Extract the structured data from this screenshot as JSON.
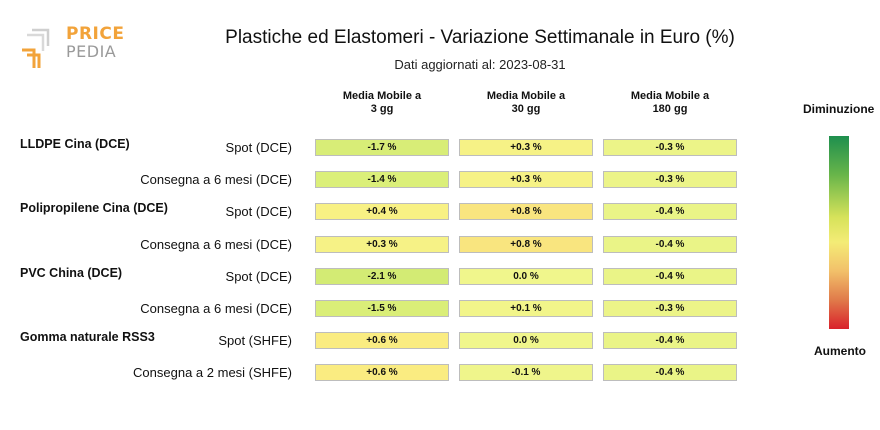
{
  "logo": {
    "line1": "PRICE",
    "line2": "PEDIA"
  },
  "title": "Plastiche ed Elastomeri - Variazione Settimanale in Euro (%)",
  "subtitle": "Dati aggiornati al: 2023-08-31",
  "legend": {
    "top": "Diminuzione",
    "bottom": "Aumento",
    "colors": [
      "#1e8f4e",
      "#d6e25a",
      "#f4ec76",
      "#d9212b"
    ]
  },
  "chart_data": {
    "type": "table",
    "title": "Plastiche ed Elastomeri - Variazione Settimanale in Euro (%)",
    "columns": [
      {
        "line1": "Media Mobile a",
        "line2": "3 gg"
      },
      {
        "line1": "Media Mobile a",
        "line2": "30 gg"
      },
      {
        "line1": "Media Mobile a",
        "line2": "180 gg"
      }
    ],
    "groups": [
      "LLDPE Cina (DCE)",
      "Polipropilene Cina (DCE)",
      "PVC China (DCE)",
      "Gomma naturale RSS3"
    ],
    "rows": [
      {
        "group": "LLDPE Cina (DCE)",
        "label": "Spot (DCE)",
        "values": [
          -1.7,
          0.3,
          -0.3
        ],
        "texts": [
          "-1.7 %",
          "+0.3 %",
          "-0.3 %"
        ]
      },
      {
        "group": "",
        "label": "Consegna a 6 mesi (DCE)",
        "values": [
          -1.4,
          0.3,
          -0.3
        ],
        "texts": [
          "-1.4 %",
          "+0.3 %",
          "-0.3 %"
        ]
      },
      {
        "group": "Polipropilene Cina (DCE)",
        "label": "Spot (DCE)",
        "values": [
          0.4,
          0.8,
          -0.4
        ],
        "texts": [
          "+0.4 %",
          "+0.8 %",
          "-0.4 %"
        ]
      },
      {
        "group": "",
        "label": "Consegna a 6 mesi (DCE)",
        "values": [
          0.3,
          0.8,
          -0.4
        ],
        "texts": [
          "+0.3 %",
          "+0.8 %",
          "-0.4 %"
        ]
      },
      {
        "group": "PVC China (DCE)",
        "label": "Spot (DCE)",
        "values": [
          -2.1,
          0.0,
          -0.4
        ],
        "texts": [
          "-2.1 %",
          "0.0 %",
          "-0.4 %"
        ]
      },
      {
        "group": "",
        "label": "Consegna a 6 mesi (DCE)",
        "values": [
          -1.5,
          0.1,
          -0.3
        ],
        "texts": [
          "-1.5 %",
          "+0.1 %",
          "-0.3 %"
        ]
      },
      {
        "group": "Gomma naturale RSS3",
        "label": "Spot (SHFE)",
        "values": [
          0.6,
          0.0,
          -0.4
        ],
        "texts": [
          "+0.6 %",
          "0.0 %",
          "-0.4 %"
        ]
      },
      {
        "group": "",
        "label": "Consegna a 2 mesi (SHFE)",
        "values": [
          0.6,
          -0.1,
          -0.4
        ],
        "texts": [
          "+0.6 %",
          "-0.1 %",
          "-0.4 %"
        ]
      }
    ]
  }
}
